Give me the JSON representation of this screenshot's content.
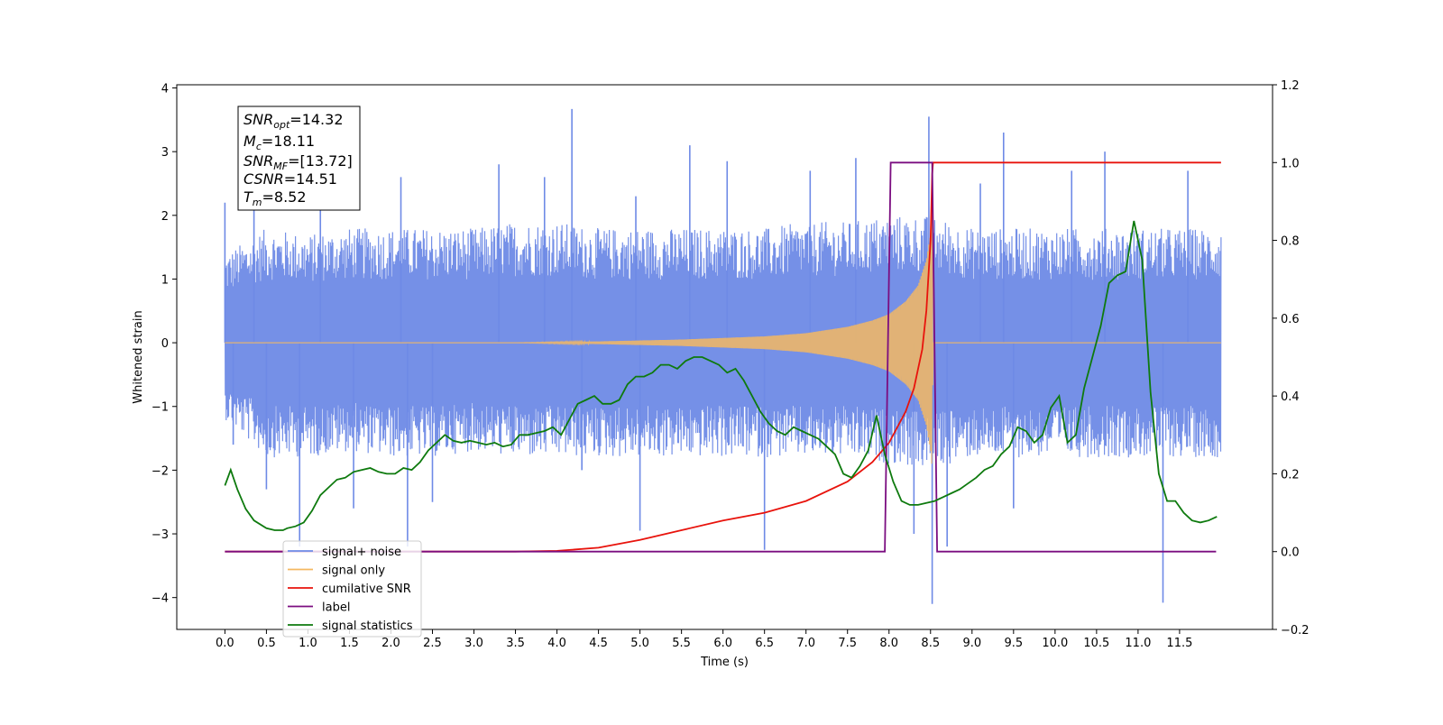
{
  "chart_data": {
    "type": "line",
    "xlabel": "Time (s)",
    "ylabel": "Whitened strain",
    "xlim": [
      -0.58,
      12.62
    ],
    "ylim": [
      -4.5,
      4.05
    ],
    "y2lim": [
      -0.2,
      1.2
    ],
    "grid": false,
    "legend_location": "lower-left",
    "x_ticks": [
      "0.0",
      "0.5",
      "1.0",
      "1.5",
      "2.0",
      "2.5",
      "3.0",
      "3.5",
      "4.0",
      "4.5",
      "5.0",
      "5.5",
      "6.0",
      "6.5",
      "7.0",
      "7.5",
      "8.0",
      "8.5",
      "9.0",
      "9.5",
      "10.0",
      "10.5",
      "11.0",
      "11.5"
    ],
    "y_ticks": [
      "4",
      "3",
      "2",
      "1",
      "0",
      "−1",
      "−2",
      "−3",
      "−4"
    ],
    "y2_ticks": [
      "1.2",
      "1.0",
      "0.8",
      "0.6",
      "0.4",
      "0.2",
      "0.0",
      "−0.2"
    ],
    "annotation": {
      "snr_opt": "SNR",
      "snr_opt_sub": "opt",
      "snr_opt_value": "=14.32",
      "mc": "M",
      "mc_sub": "c",
      "mc_value": "=18.11",
      "snr_mf": "SNR",
      "snr_mf_sub": "MF",
      "snr_mf_value": "=[13.72]",
      "csnr": "CSNR",
      "csnr_value": "=14.51",
      "tm": "T",
      "tm_sub": "m",
      "tm_value": "=8.52"
    },
    "series": [
      {
        "name": "signal+ noise",
        "axis": "left",
        "color": "#6e8ae6",
        "envelope_upper": [
          [
            0.0,
            1.4
          ],
          [
            0.5,
            1.8
          ],
          [
            1.0,
            1.7
          ],
          [
            1.5,
            1.8
          ],
          [
            2.0,
            1.8
          ],
          [
            2.5,
            1.8
          ],
          [
            3.0,
            1.8
          ],
          [
            3.5,
            1.9
          ],
          [
            4.0,
            1.9
          ],
          [
            4.5,
            1.8
          ],
          [
            5.0,
            1.8
          ],
          [
            5.5,
            1.8
          ],
          [
            6.0,
            1.8
          ],
          [
            6.5,
            1.8
          ],
          [
            7.0,
            1.9
          ],
          [
            7.5,
            1.9
          ],
          [
            8.0,
            2.0
          ],
          [
            8.5,
            2.0
          ],
          [
            9.0,
            1.8
          ],
          [
            9.5,
            1.8
          ],
          [
            10.0,
            1.8
          ],
          [
            10.5,
            1.8
          ],
          [
            11.0,
            1.8
          ],
          [
            11.5,
            1.8
          ],
          [
            12.0,
            1.8
          ]
        ],
        "envelope_lower": [
          [
            0.0,
            -1.2
          ],
          [
            0.5,
            -1.8
          ],
          [
            1.0,
            -1.8
          ],
          [
            1.5,
            -1.7
          ],
          [
            2.0,
            -1.8
          ],
          [
            2.5,
            -1.8
          ],
          [
            3.0,
            -1.7
          ],
          [
            3.5,
            -1.8
          ],
          [
            4.0,
            -1.8
          ],
          [
            4.5,
            -1.8
          ],
          [
            5.0,
            -1.8
          ],
          [
            5.5,
            -1.8
          ],
          [
            6.0,
            -1.8
          ],
          [
            6.5,
            -1.8
          ],
          [
            7.0,
            -1.8
          ],
          [
            7.5,
            -1.8
          ],
          [
            8.0,
            -1.9
          ],
          [
            8.5,
            -2.0
          ],
          [
            9.0,
            -1.8
          ],
          [
            9.5,
            -1.8
          ],
          [
            10.0,
            -1.8
          ],
          [
            10.5,
            -1.8
          ],
          [
            11.0,
            -1.8
          ],
          [
            11.5,
            -1.8
          ],
          [
            12.0,
            -1.8
          ]
        ],
        "spikes": [
          [
            0.0,
            2.2
          ],
          [
            0.1,
            -1.6
          ],
          [
            0.35,
            2.3
          ],
          [
            0.5,
            -2.3
          ],
          [
            0.9,
            -3.2
          ],
          [
            1.15,
            2.4
          ],
          [
            1.55,
            -2.6
          ],
          [
            2.12,
            2.6
          ],
          [
            2.2,
            -3.2
          ],
          [
            2.5,
            -2.5
          ],
          [
            3.3,
            2.8
          ],
          [
            3.85,
            2.6
          ],
          [
            4.18,
            3.67
          ],
          [
            4.3,
            -2.0
          ],
          [
            4.95,
            2.3
          ],
          [
            5.0,
            -2.95
          ],
          [
            5.6,
            3.1
          ],
          [
            6.05,
            2.85
          ],
          [
            6.5,
            -3.25
          ],
          [
            7.05,
            2.7
          ],
          [
            7.6,
            2.9
          ],
          [
            8.3,
            -3.0
          ],
          [
            8.48,
            3.55
          ],
          [
            8.52,
            -4.1
          ],
          [
            8.7,
            -3.2
          ],
          [
            9.1,
            2.5
          ],
          [
            9.38,
            3.3
          ],
          [
            9.5,
            -2.6
          ],
          [
            10.2,
            2.7
          ],
          [
            10.6,
            3.0
          ],
          [
            11.3,
            -4.08
          ],
          [
            11.6,
            2.7
          ]
        ]
      },
      {
        "name": "signal only",
        "axis": "left",
        "color": "#f5b961",
        "amplitude": [
          [
            0.0,
            0.0
          ],
          [
            3.5,
            0.0
          ],
          [
            4.5,
            0.02
          ],
          [
            5.5,
            0.05
          ],
          [
            6.5,
            0.1
          ],
          [
            7.0,
            0.15
          ],
          [
            7.5,
            0.25
          ],
          [
            7.8,
            0.35
          ],
          [
            8.0,
            0.45
          ],
          [
            8.2,
            0.65
          ],
          [
            8.35,
            0.9
          ],
          [
            8.45,
            1.3
          ],
          [
            8.5,
            1.7
          ],
          [
            8.52,
            2.0
          ],
          [
            8.53,
            0.0
          ],
          [
            12.0,
            0.0
          ]
        ]
      },
      {
        "name": "cumilative SNR",
        "axis": "right",
        "color": "#e8130c",
        "points": [
          [
            0.0,
            0.0
          ],
          [
            3.5,
            0.0
          ],
          [
            4.0,
            0.002
          ],
          [
            4.5,
            0.01
          ],
          [
            5.0,
            0.03
          ],
          [
            5.5,
            0.055
          ],
          [
            6.0,
            0.08
          ],
          [
            6.5,
            0.1
          ],
          [
            7.0,
            0.13
          ],
          [
            7.5,
            0.18
          ],
          [
            7.8,
            0.23
          ],
          [
            8.0,
            0.28
          ],
          [
            8.2,
            0.36
          ],
          [
            8.3,
            0.42
          ],
          [
            8.4,
            0.52
          ],
          [
            8.45,
            0.62
          ],
          [
            8.5,
            0.8
          ],
          [
            8.52,
            0.97
          ],
          [
            8.53,
            1.0
          ],
          [
            12.0,
            1.0
          ]
        ]
      },
      {
        "name": "label",
        "axis": "right",
        "color": "#7b0d80",
        "points": [
          [
            0.0,
            0.0
          ],
          [
            7.95,
            0.0
          ],
          [
            8.02,
            1.0
          ],
          [
            8.52,
            1.0
          ],
          [
            8.58,
            0.0
          ],
          [
            11.94,
            0.0
          ]
        ]
      },
      {
        "name": "signal statistics",
        "axis": "right",
        "color": "#0e7a0e",
        "points": [
          [
            0.0,
            0.17
          ],
          [
            0.07,
            0.21
          ],
          [
            0.15,
            0.16
          ],
          [
            0.25,
            0.11
          ],
          [
            0.35,
            0.08
          ],
          [
            0.5,
            0.06
          ],
          [
            0.6,
            0.055
          ],
          [
            0.7,
            0.055
          ],
          [
            0.75,
            0.06
          ],
          [
            0.85,
            0.065
          ],
          [
            0.95,
            0.075
          ],
          [
            1.05,
            0.105
          ],
          [
            1.15,
            0.145
          ],
          [
            1.25,
            0.165
          ],
          [
            1.35,
            0.185
          ],
          [
            1.45,
            0.19
          ],
          [
            1.55,
            0.205
          ],
          [
            1.65,
            0.21
          ],
          [
            1.75,
            0.215
          ],
          [
            1.85,
            0.205
          ],
          [
            1.95,
            0.2
          ],
          [
            2.05,
            0.2
          ],
          [
            2.15,
            0.215
          ],
          [
            2.25,
            0.21
          ],
          [
            2.35,
            0.23
          ],
          [
            2.45,
            0.26
          ],
          [
            2.55,
            0.28
          ],
          [
            2.65,
            0.3
          ],
          [
            2.75,
            0.285
          ],
          [
            2.85,
            0.28
          ],
          [
            2.95,
            0.285
          ],
          [
            3.05,
            0.28
          ],
          [
            3.15,
            0.275
          ],
          [
            3.25,
            0.28
          ],
          [
            3.35,
            0.27
          ],
          [
            3.45,
            0.275
          ],
          [
            3.55,
            0.3
          ],
          [
            3.65,
            0.3
          ],
          [
            3.75,
            0.305
          ],
          [
            3.85,
            0.31
          ],
          [
            3.95,
            0.32
          ],
          [
            4.05,
            0.3
          ],
          [
            4.15,
            0.34
          ],
          [
            4.25,
            0.38
          ],
          [
            4.35,
            0.39
          ],
          [
            4.45,
            0.4
          ],
          [
            4.55,
            0.38
          ],
          [
            4.65,
            0.38
          ],
          [
            4.75,
            0.39
          ],
          [
            4.85,
            0.43
          ],
          [
            4.95,
            0.45
          ],
          [
            5.05,
            0.45
          ],
          [
            5.15,
            0.46
          ],
          [
            5.25,
            0.48
          ],
          [
            5.35,
            0.48
          ],
          [
            5.45,
            0.47
          ],
          [
            5.55,
            0.49
          ],
          [
            5.65,
            0.5
          ],
          [
            5.75,
            0.5
          ],
          [
            5.85,
            0.49
          ],
          [
            5.95,
            0.48
          ],
          [
            6.05,
            0.46
          ],
          [
            6.15,
            0.47
          ],
          [
            6.25,
            0.44
          ],
          [
            6.35,
            0.4
          ],
          [
            6.45,
            0.36
          ],
          [
            6.55,
            0.33
          ],
          [
            6.65,
            0.31
          ],
          [
            6.75,
            0.3
          ],
          [
            6.85,
            0.32
          ],
          [
            6.95,
            0.31
          ],
          [
            7.05,
            0.3
          ],
          [
            7.15,
            0.29
          ],
          [
            7.25,
            0.27
          ],
          [
            7.35,
            0.25
          ],
          [
            7.45,
            0.2
          ],
          [
            7.55,
            0.19
          ],
          [
            7.65,
            0.22
          ],
          [
            7.75,
            0.26
          ],
          [
            7.85,
            0.35
          ],
          [
            7.95,
            0.25
          ],
          [
            8.05,
            0.18
          ],
          [
            8.15,
            0.13
          ],
          [
            8.25,
            0.12
          ],
          [
            8.35,
            0.12
          ],
          [
            8.45,
            0.125
          ],
          [
            8.55,
            0.13
          ],
          [
            8.65,
            0.14
          ],
          [
            8.75,
            0.15
          ],
          [
            8.85,
            0.16
          ],
          [
            8.95,
            0.175
          ],
          [
            9.05,
            0.19
          ],
          [
            9.15,
            0.21
          ],
          [
            9.25,
            0.22
          ],
          [
            9.35,
            0.25
          ],
          [
            9.45,
            0.27
          ],
          [
            9.55,
            0.32
          ],
          [
            9.65,
            0.31
          ],
          [
            9.75,
            0.28
          ],
          [
            9.85,
            0.3
          ],
          [
            9.95,
            0.37
          ],
          [
            10.05,
            0.4
          ],
          [
            10.15,
            0.28
          ],
          [
            10.25,
            0.3
          ],
          [
            10.35,
            0.42
          ],
          [
            10.45,
            0.5
          ],
          [
            10.55,
            0.58
          ],
          [
            10.65,
            0.69
          ],
          [
            10.75,
            0.71
          ],
          [
            10.85,
            0.72
          ],
          [
            10.95,
            0.85
          ],
          [
            11.05,
            0.75
          ],
          [
            11.15,
            0.41
          ],
          [
            11.25,
            0.2
          ],
          [
            11.35,
            0.13
          ],
          [
            11.45,
            0.13
          ],
          [
            11.55,
            0.1
          ],
          [
            11.65,
            0.08
          ],
          [
            11.75,
            0.075
          ],
          [
            11.85,
            0.08
          ],
          [
            11.95,
            0.09
          ]
        ]
      }
    ],
    "legend": [
      {
        "label": "signal+ noise",
        "color": "#6e8ae6"
      },
      {
        "label": "signal only",
        "color": "#f5b961"
      },
      {
        "label": "cumilative SNR",
        "color": "#e8130c"
      },
      {
        "label": "label",
        "color": "#7b0d80"
      },
      {
        "label": "signal statistics",
        "color": "#0e7a0e"
      }
    ]
  }
}
